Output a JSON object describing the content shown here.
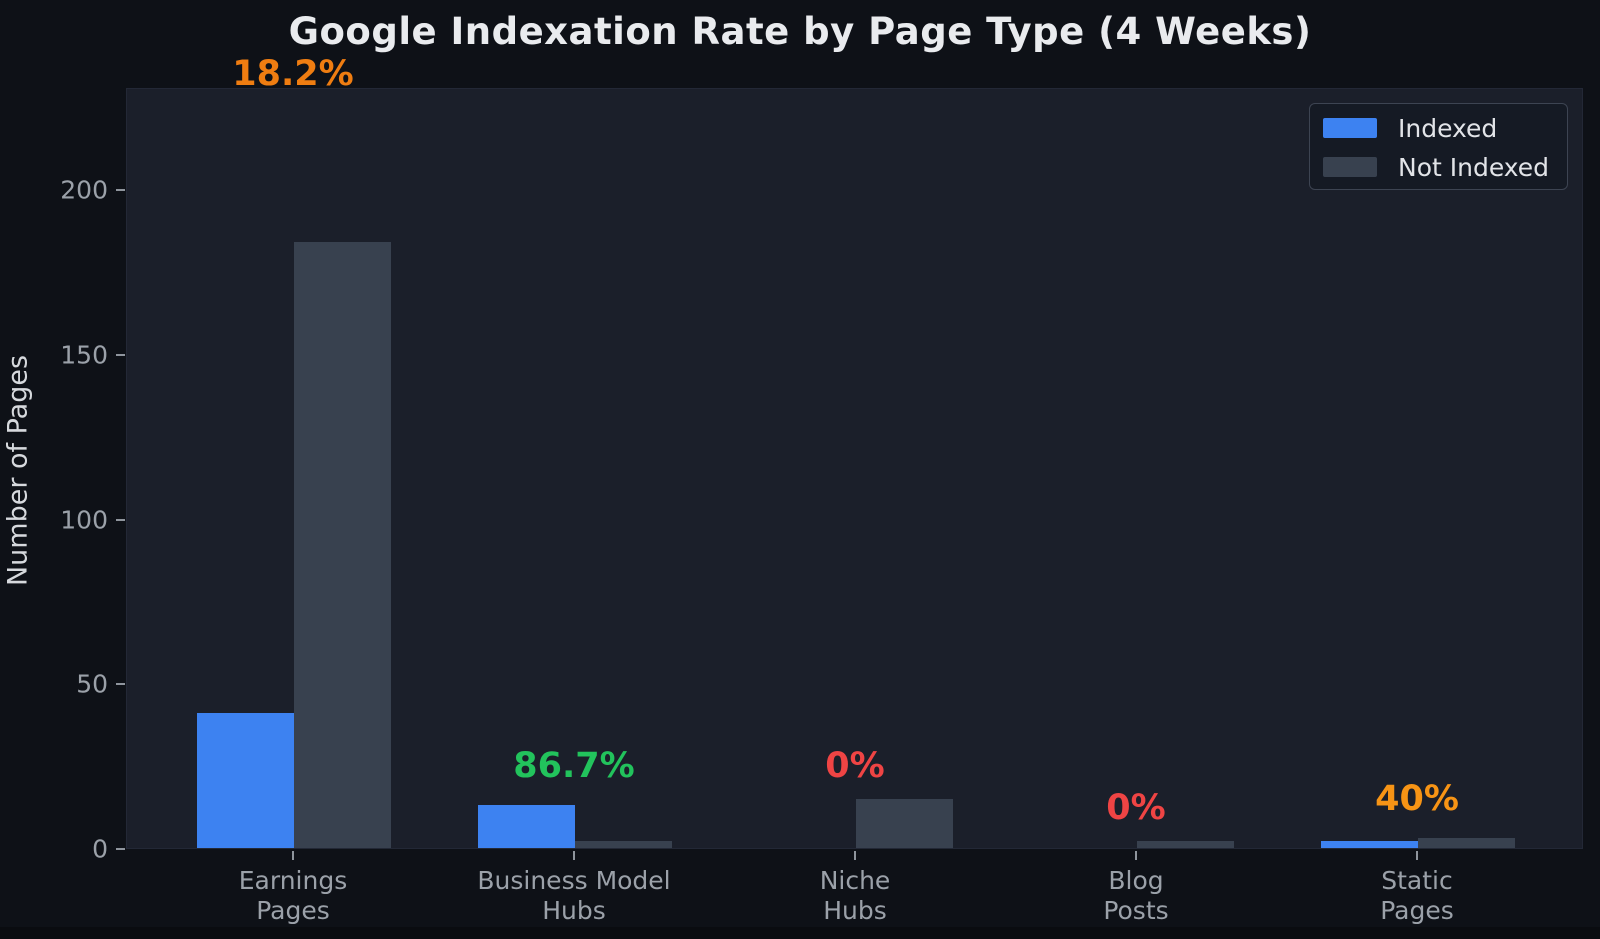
{
  "title": "Google Indexation Rate by Page Type (4 Weeks)",
  "y_axis_label": "Number of Pages",
  "legend": {
    "items": [
      {
        "label": "Indexed",
        "color": "#3d82f1"
      },
      {
        "label": "Not Indexed",
        "color": "#38414f"
      }
    ]
  },
  "chart_data": {
    "type": "bar",
    "title": "Google Indexation Rate by Page Type (4 Weeks)",
    "xlabel": "",
    "ylabel": "Number of Pages",
    "categories": [
      [
        "Earnings",
        "Pages"
      ],
      [
        "Business Model",
        "Hubs"
      ],
      [
        "Niche",
        "Hubs"
      ],
      [
        "Blog",
        "Posts"
      ],
      [
        "Static",
        "Pages"
      ]
    ],
    "series": [
      {
        "name": "Indexed",
        "color": "#3d82f1",
        "values": [
          41,
          13,
          0,
          0,
          2
        ]
      },
      {
        "name": "Not Indexed",
        "color": "#38414f",
        "values": [
          184,
          2,
          15,
          2,
          3
        ]
      }
    ],
    "annotations": [
      {
        "text": "18.2%",
        "color": "#ef7d11"
      },
      {
        "text": "86.7%",
        "color": "#22c35c"
      },
      {
        "text": "0%",
        "color": "#ef4444"
      },
      {
        "text": "0%",
        "color": "#ef4444"
      },
      {
        "text": "40%",
        "color": "#f79415"
      }
    ],
    "yticks": [
      0,
      50,
      100,
      150,
      200
    ],
    "ylim": [
      0,
      231
    ],
    "grid": false,
    "legend_position": "upper right",
    "background": "#0e1117",
    "plot_background": "#1b1f2a"
  }
}
